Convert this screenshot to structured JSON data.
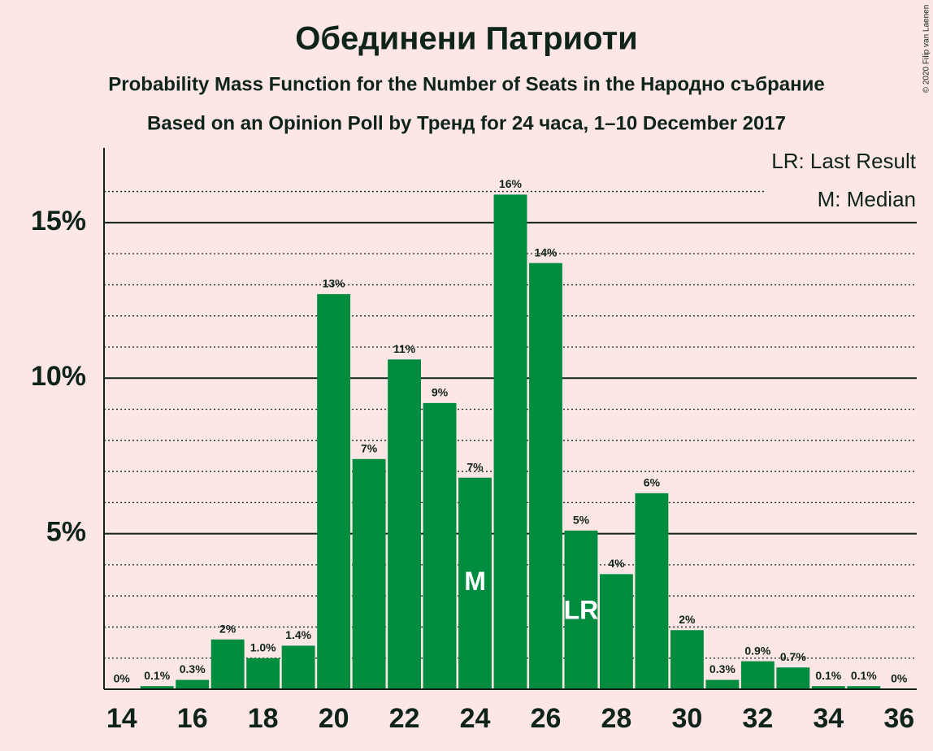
{
  "chart_data": {
    "type": "bar",
    "title": "Обединени Патриоти",
    "subtitle": "Probability Mass Function for the Number of Seats in the Народно събрание",
    "subtitle2": "Based on an Opinion Poll by Тренд for 24 часа, 1–10 December 2017",
    "copyright": "© 2020 Filip van Laenen",
    "legend": [
      "LR: Last Result",
      "M: Median"
    ],
    "x": [
      14,
      15,
      16,
      17,
      18,
      19,
      20,
      21,
      22,
      23,
      24,
      25,
      26,
      27,
      28,
      29,
      30,
      31,
      32,
      33,
      34,
      35,
      36
    ],
    "values": [
      0,
      0.1,
      0.3,
      1.6,
      1.0,
      1.4,
      12.7,
      7.4,
      10.6,
      9.2,
      6.8,
      15.9,
      13.7,
      5.1,
      3.7,
      6.3,
      1.9,
      0.3,
      0.9,
      0.7,
      0.1,
      0.1,
      0
    ],
    "value_labels": [
      "0%",
      "0.1%",
      "0.3%",
      "2%",
      "1.0%",
      "1.4%",
      "13%",
      "7%",
      "11%",
      "9%",
      "7%",
      "16%",
      "14%",
      "5%",
      "4%",
      "6%",
      "2%",
      "0.3%",
      "0.9%",
      "0.7%",
      "0.1%",
      "0.1%",
      "0%"
    ],
    "color": "#008c3f",
    "annotations": [
      {
        "x": 24,
        "label": "M"
      },
      {
        "x": 27,
        "label": "LR"
      }
    ],
    "xlim": [
      13.5,
      36.5
    ],
    "xticks": [
      14,
      16,
      18,
      20,
      22,
      24,
      26,
      28,
      30,
      32,
      34,
      36
    ],
    "ylim": [
      0,
      17.4
    ],
    "yticks": [
      {
        "value": 5,
        "label": "5%"
      },
      {
        "value": 10,
        "label": "10%"
      },
      {
        "value": 15,
        "label": "15%"
      }
    ],
    "minor_yticks": [
      1,
      2,
      3,
      4,
      6,
      7,
      8,
      9,
      11,
      12,
      13,
      14,
      16
    ],
    "grid": true
  }
}
